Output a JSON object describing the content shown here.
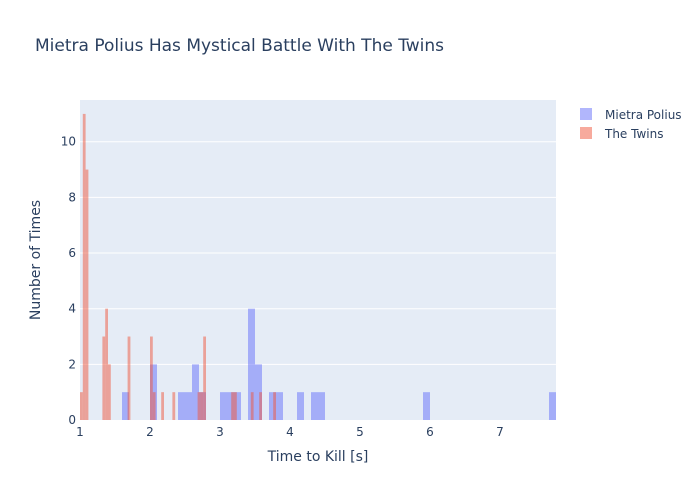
{
  "chart_data": {
    "type": "histogram",
    "title": "Mietra Polius Has Mystical Battle With The Twins",
    "xlabel": "Time to Kill [s]",
    "ylabel": "Number of Times",
    "xlim": [
      1.0,
      7.8
    ],
    "ylim": [
      0,
      11.5
    ],
    "x_ticks": [
      1,
      2,
      3,
      4,
      5,
      6,
      7
    ],
    "y_ticks": [
      0,
      2,
      4,
      6,
      8,
      10
    ],
    "legend_position": "top-right",
    "series": [
      {
        "name": "Mietra Polius",
        "color": "#636efa",
        "bin_width": 0.1,
        "bins": [
          {
            "x": 1.6,
            "count": 1
          },
          {
            "x": 2.0,
            "count": 2
          },
          {
            "x": 2.4,
            "count": 1
          },
          {
            "x": 2.5,
            "count": 1
          },
          {
            "x": 2.6,
            "count": 2
          },
          {
            "x": 2.7,
            "count": 1
          },
          {
            "x": 3.0,
            "count": 1
          },
          {
            "x": 3.1,
            "count": 1
          },
          {
            "x": 3.2,
            "count": 1
          },
          {
            "x": 3.4,
            "count": 4
          },
          {
            "x": 3.5,
            "count": 2
          },
          {
            "x": 3.7,
            "count": 1
          },
          {
            "x": 3.8,
            "count": 1
          },
          {
            "x": 4.1,
            "count": 1
          },
          {
            "x": 4.3,
            "count": 1
          },
          {
            "x": 4.4,
            "count": 1
          },
          {
            "x": 5.9,
            "count": 1
          },
          {
            "x": 7.7,
            "count": 1
          }
        ]
      },
      {
        "name": "The Twins",
        "color": "#ef553b",
        "bin_width": 0.04,
        "bins": [
          {
            "x": 1.0,
            "count": 1
          },
          {
            "x": 1.04,
            "count": 11
          },
          {
            "x": 1.08,
            "count": 9
          },
          {
            "x": 1.32,
            "count": 3
          },
          {
            "x": 1.36,
            "count": 4
          },
          {
            "x": 1.4,
            "count": 2
          },
          {
            "x": 1.68,
            "count": 3
          },
          {
            "x": 2.0,
            "count": 3
          },
          {
            "x": 2.04,
            "count": 1
          },
          {
            "x": 2.16,
            "count": 1
          },
          {
            "x": 2.32,
            "count": 1
          },
          {
            "x": 2.68,
            "count": 1
          },
          {
            "x": 2.72,
            "count": 1
          },
          {
            "x": 2.76,
            "count": 3
          },
          {
            "x": 3.16,
            "count": 1
          },
          {
            "x": 3.2,
            "count": 1
          },
          {
            "x": 3.44,
            "count": 1
          },
          {
            "x": 3.56,
            "count": 1
          },
          {
            "x": 3.76,
            "count": 1
          }
        ]
      }
    ]
  }
}
